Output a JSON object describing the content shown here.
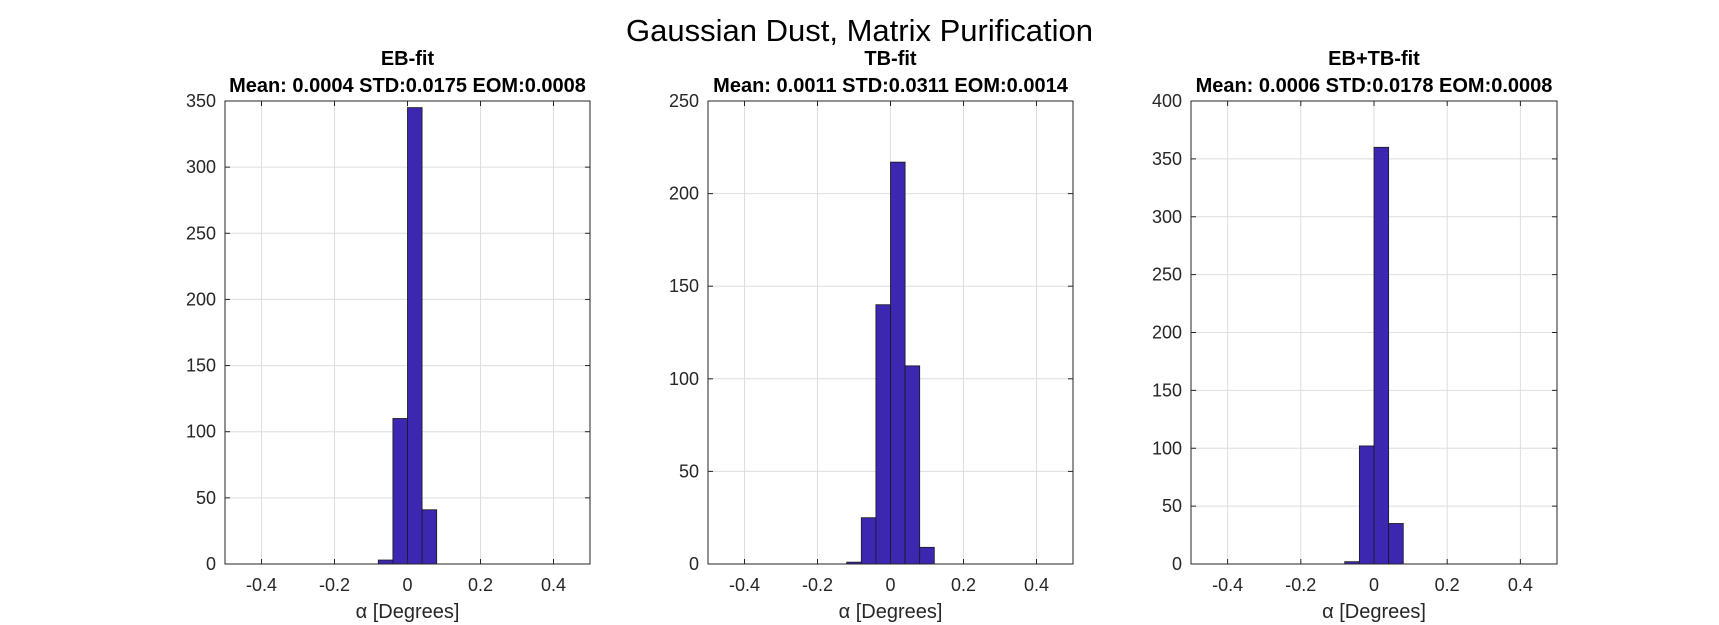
{
  "figure_title": "Gaussian Dust, Matrix Purification",
  "colors": {
    "bar_fill": "#3b27b0",
    "bar_edge": "#1a1a1a",
    "grid": "#dedede",
    "axis": "#262626"
  },
  "chart_data": [
    {
      "type": "bar",
      "title": "EB-fit",
      "subtitle": "Mean: 0.0004 STD:0.0175 EOM:0.0008",
      "xlabel": "α [Degrees]",
      "ylabel": "",
      "xlim": [
        -0.5,
        0.5
      ],
      "ylim": [
        0,
        350
      ],
      "xticks": [
        -0.4,
        -0.2,
        0,
        0.2,
        0.4
      ],
      "xtick_labels": [
        "-0.4",
        "-0.2",
        "0",
        "0.2",
        "0.4"
      ],
      "yticks": [
        0,
        50,
        100,
        150,
        200,
        250,
        300,
        350
      ],
      "ytick_labels": [
        "0",
        "50",
        "100",
        "150",
        "200",
        "250",
        "300",
        "350"
      ],
      "grid": true,
      "bin_edges": [
        -0.08,
        -0.04,
        0,
        0.04,
        0.08
      ],
      "values": [
        3,
        110,
        345,
        41
      ]
    },
    {
      "type": "bar",
      "title": "TB-fit",
      "subtitle": "Mean: 0.0011 STD:0.0311 EOM:0.0014",
      "xlabel": "α [Degrees]",
      "ylabel": "",
      "xlim": [
        -0.5,
        0.5
      ],
      "ylim": [
        0,
        250
      ],
      "xticks": [
        -0.4,
        -0.2,
        0,
        0.2,
        0.4
      ],
      "xtick_labels": [
        "-0.4",
        "-0.2",
        "0",
        "0.2",
        "0.4"
      ],
      "yticks": [
        0,
        50,
        100,
        150,
        200,
        250
      ],
      "ytick_labels": [
        "0",
        "50",
        "100",
        "150",
        "200",
        "250"
      ],
      "grid": true,
      "bin_edges": [
        -0.12,
        -0.08,
        -0.04,
        0,
        0.04,
        0.08,
        0.12
      ],
      "values": [
        1,
        25,
        140,
        217,
        107,
        9
      ]
    },
    {
      "type": "bar",
      "title": "EB+TB-fit",
      "subtitle": "Mean: 0.0006 STD:0.0178 EOM:0.0008",
      "xlabel": "α [Degrees]",
      "ylabel": "",
      "xlim": [
        -0.5,
        0.5
      ],
      "ylim": [
        0,
        400
      ],
      "xticks": [
        -0.4,
        -0.2,
        0,
        0.2,
        0.4
      ],
      "xtick_labels": [
        "-0.4",
        "-0.2",
        "0",
        "0.2",
        "0.4"
      ],
      "yticks": [
        0,
        50,
        100,
        150,
        200,
        250,
        300,
        350,
        400
      ],
      "ytick_labels": [
        "0",
        "50",
        "100",
        "150",
        "200",
        "250",
        "300",
        "350",
        "400"
      ],
      "grid": true,
      "bin_edges": [
        -0.08,
        -0.04,
        0,
        0.04,
        0.08
      ],
      "values": [
        2,
        102,
        360,
        35
      ]
    }
  ]
}
